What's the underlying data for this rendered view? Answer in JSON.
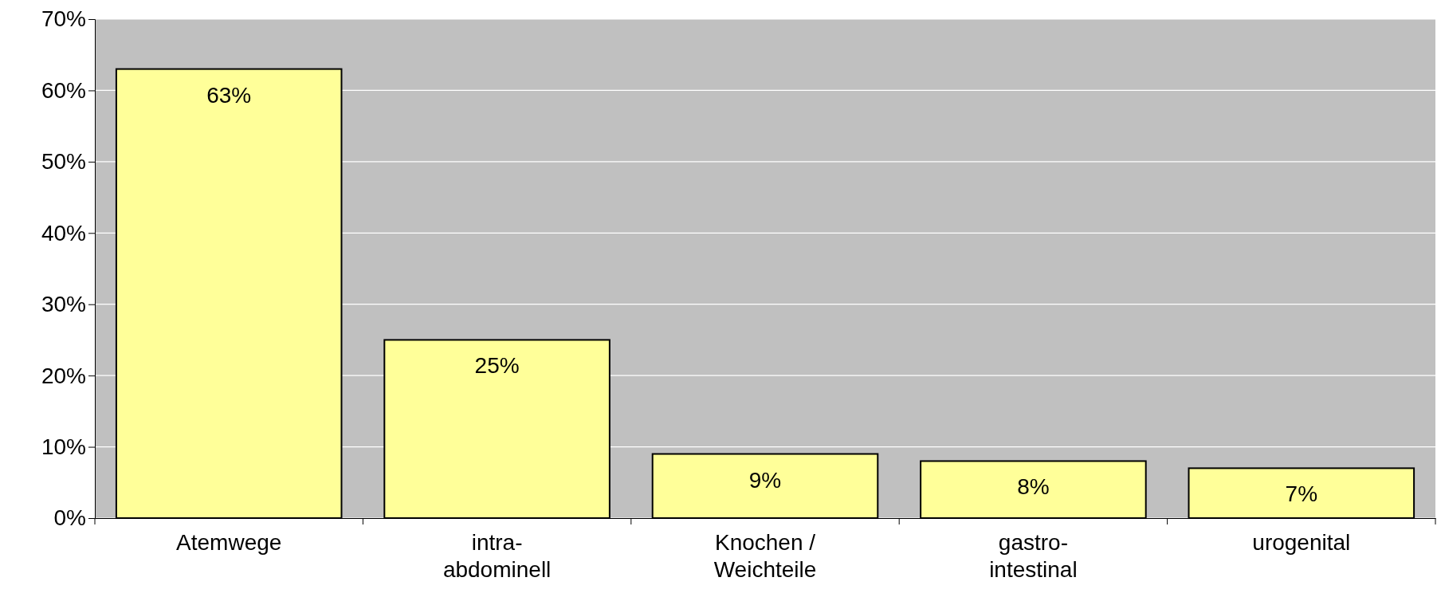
{
  "chart_data": {
    "type": "bar",
    "categories": [
      "Atemwege",
      "intra-\nabdominell",
      "Knochen /\nWeichteile",
      "gastro-\nintestinal",
      "urogenital"
    ],
    "values": [
      63,
      25,
      9,
      8,
      7
    ],
    "value_labels": [
      "63%",
      "25%",
      "9%",
      "8%",
      "7%"
    ],
    "color": "#ffff99",
    "ylim": [
      0,
      70
    ],
    "yticks": [
      {
        "value": 0,
        "label": "0%"
      },
      {
        "value": 10,
        "label": "10%"
      },
      {
        "value": 20,
        "label": "20%"
      },
      {
        "value": 30,
        "label": "30%"
      },
      {
        "value": 40,
        "label": "40%"
      },
      {
        "value": 50,
        "label": "50%"
      },
      {
        "value": 60,
        "label": "60%"
      },
      {
        "value": 70,
        "label": "70%"
      }
    ],
    "grid": "y"
  }
}
